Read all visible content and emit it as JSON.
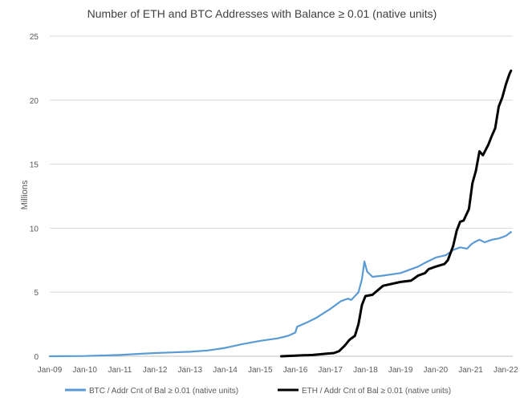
{
  "chart_data": {
    "type": "line",
    "title": "Number  of ETH and BTC Addresses with Balance ≥ 0.01 (native units)",
    "ylabel": "Millions",
    "xlabel": "",
    "ylim": [
      0,
      25
    ],
    "yticks": [
      0,
      5,
      10,
      15,
      20,
      25
    ],
    "xlim": [
      2009.0,
      2022.2
    ],
    "xticks": [
      "Jan-09",
      "Jan-10",
      "Jan-11",
      "Jan-12",
      "Jan-13",
      "Jan-14",
      "Jan-15",
      "Jan-16",
      "Jan-17",
      "Jan-18",
      "Jan-19",
      "Jan-20",
      "Jan-21",
      "Jan-22"
    ],
    "grid": "horizontal",
    "legend_position": "bottom",
    "series": [
      {
        "name": "BTC / Addr Cnt of Bal ≥ 0.01 (native units)",
        "color": "#5b9bd5",
        "x": [
          2009.0,
          2010.0,
          2011.0,
          2011.5,
          2012.0,
          2012.5,
          2013.0,
          2013.5,
          2014.0,
          2014.5,
          2015.0,
          2015.5,
          2015.8,
          2016.0,
          2016.05,
          2016.3,
          2016.6,
          2017.0,
          2017.3,
          2017.5,
          2017.6,
          2017.8,
          2017.9,
          2017.97,
          2018.05,
          2018.2,
          2018.5,
          2019.0,
          2019.5,
          2019.7,
          2020.0,
          2020.3,
          2020.5,
          2020.7,
          2020.9,
          2021.0,
          2021.1,
          2021.25,
          2021.4,
          2021.6,
          2021.8,
          2022.0,
          2022.15
        ],
        "y": [
          0.0,
          0.02,
          0.1,
          0.18,
          0.25,
          0.3,
          0.35,
          0.45,
          0.65,
          0.95,
          1.2,
          1.4,
          1.6,
          1.85,
          2.3,
          2.6,
          3.0,
          3.7,
          4.3,
          4.5,
          4.4,
          5.0,
          6.0,
          7.4,
          6.6,
          6.2,
          6.3,
          6.5,
          7.0,
          7.3,
          7.7,
          7.9,
          8.3,
          8.5,
          8.4,
          8.7,
          8.9,
          9.1,
          8.9,
          9.1,
          9.2,
          9.4,
          9.7
        ]
      },
      {
        "name": "ETH / Addr Cnt of Bal ≥ 0.01 (native units)",
        "color": "#000000",
        "x": [
          2015.6,
          2016.0,
          2016.5,
          2016.9,
          2017.1,
          2017.25,
          2017.4,
          2017.55,
          2017.7,
          2017.8,
          2017.9,
          2018.0,
          2018.2,
          2018.5,
          2019.0,
          2019.3,
          2019.5,
          2019.7,
          2019.8,
          2020.0,
          2020.25,
          2020.35,
          2020.5,
          2020.6,
          2020.7,
          2020.8,
          2020.95,
          2021.05,
          2021.15,
          2021.25,
          2021.35,
          2021.5,
          2021.6,
          2021.7,
          2021.8,
          2021.9,
          2022.0,
          2022.1,
          2022.15
        ],
        "y": [
          0.0,
          0.05,
          0.1,
          0.2,
          0.25,
          0.4,
          0.8,
          1.3,
          1.6,
          2.5,
          4.0,
          4.7,
          4.8,
          5.5,
          5.8,
          5.9,
          6.3,
          6.5,
          6.8,
          7.0,
          7.2,
          7.5,
          8.6,
          9.8,
          10.5,
          10.6,
          11.5,
          13.5,
          14.5,
          16.0,
          15.7,
          16.5,
          17.2,
          17.8,
          19.5,
          20.2,
          21.2,
          22.0,
          22.3
        ]
      }
    ]
  }
}
